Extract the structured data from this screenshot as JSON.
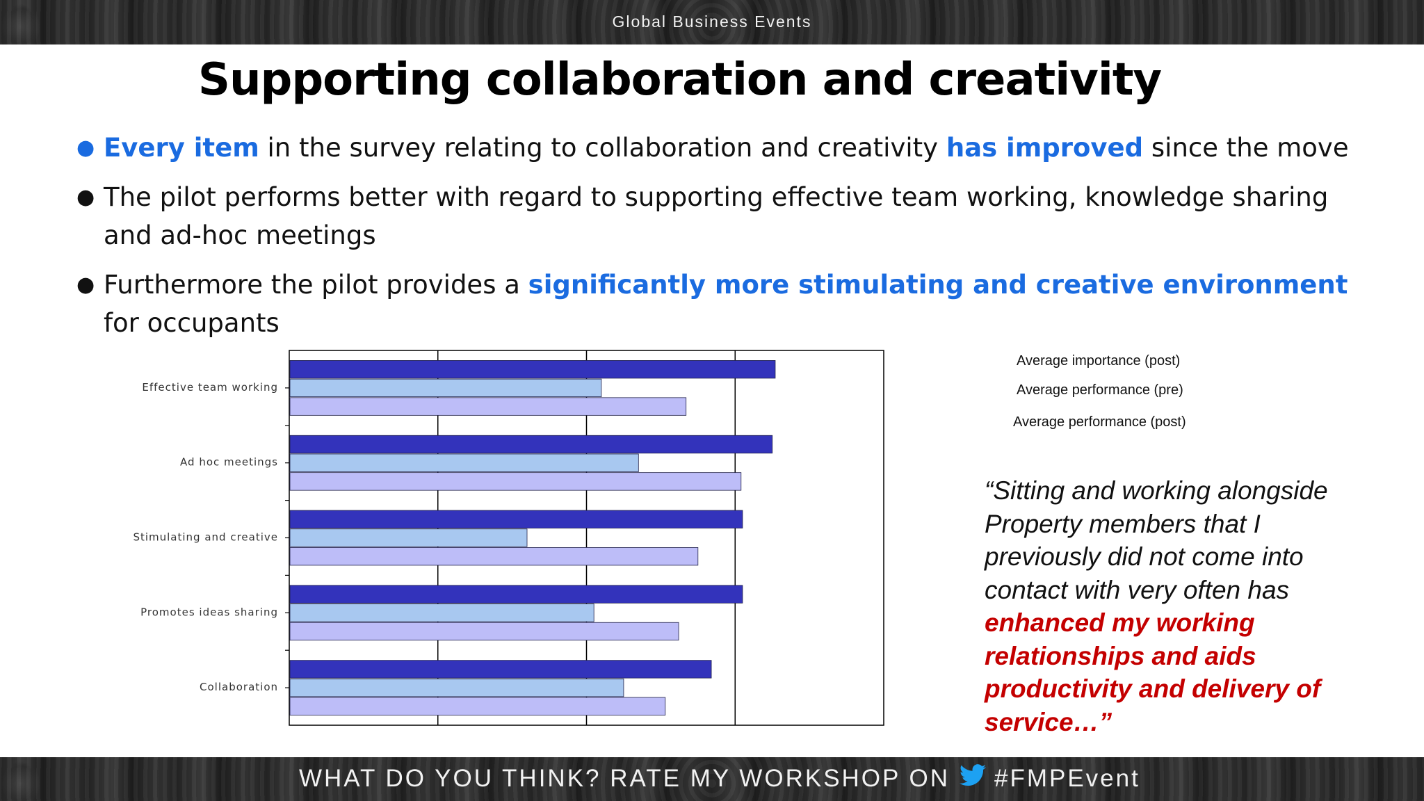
{
  "header": {
    "event_name": "Global Business Events"
  },
  "slide": {
    "title": "Supporting collaboration and creativity",
    "bullets": [
      {
        "pre": "",
        "hl1": "Every item",
        "mid": " in the survey relating to collaboration and creativity ",
        "hl2": "has improved",
        "post": " since the move"
      },
      {
        "text": "The pilot performs better with regard to supporting effective team working, knowledge sharing and ad-hoc meetings"
      },
      {
        "pre": "Furthermore the pilot provides a ",
        "hl": "significantly more stimulating and creative environment",
        "post": " for occupants"
      }
    ]
  },
  "legend": {
    "items": [
      "Average importance (post)",
      "Average performance (pre)",
      "Average performance (post)"
    ]
  },
  "quote": {
    "plain": "“Sitting and working alongside Property members that I previously did not come into contact with very often has ",
    "emphasis": "enhanced my working relationships and aids productivity and delivery of service…”"
  },
  "footer": {
    "prompt": "WHAT DO YOU THINK? RATE MY WORKSHOP ON",
    "hashtag": "#FMPEvent"
  },
  "colors": {
    "highlight_blue": "#1a6be0",
    "quote_red": "#c40000",
    "series_importance_post": "#3333bb",
    "series_performance_pre": "#a8c8f0",
    "series_performance_post": "#bdbdf8"
  },
  "chart_data": {
    "type": "bar",
    "orientation": "horizontal",
    "categories": [
      "Effective team working",
      "Ad hoc meetings",
      "Stimulating and creative",
      "Promotes ideas sharing",
      "Collaboration"
    ],
    "series": [
      {
        "name": "Average importance (post)",
        "values": [
          3.27,
          3.25,
          3.05,
          3.05,
          2.84
        ]
      },
      {
        "name": "Average performance (pre)",
        "values": [
          2.1,
          2.35,
          1.6,
          2.05,
          2.25
        ]
      },
      {
        "name": "Average performance (post)",
        "values": [
          2.67,
          3.04,
          2.75,
          2.62,
          2.53
        ]
      }
    ],
    "xlim": [
      0,
      4
    ],
    "grid": true,
    "legend": "right"
  }
}
